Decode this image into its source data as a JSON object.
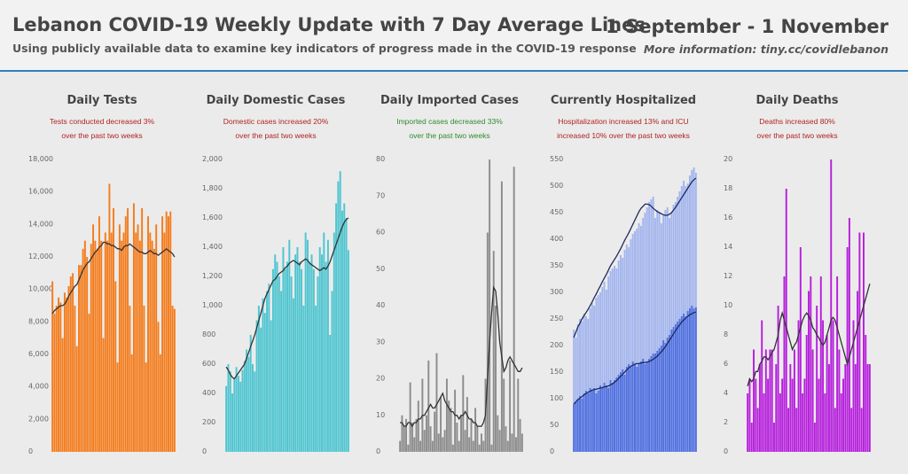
{
  "header": {
    "title": "Lebanon COVID-19 Weekly Update with 7 Day Average Lines",
    "subtitle": "Using publicly available data to examine key indicators of progress made in the COVID-19 response",
    "date_range": "1 September - 1 November",
    "more_info": "More information: tiny.cc/covidlebanon"
  },
  "chart_data": [
    {
      "type": "bar",
      "title": "Daily Tests",
      "annotation": [
        "Tests conducted decreased 3%",
        "over the past two weeks"
      ],
      "annotation_color": "#b22222",
      "ylim": [
        0,
        18000
      ],
      "yticks": [
        0,
        {
          "value": 2000,
          "label": "2,000"
        },
        {
          "value": 4000,
          "label": "4,000"
        },
        {
          "value": 6000,
          "label": "6,000"
        },
        {
          "value": 8000,
          "label": "8,000"
        },
        {
          "value": 10000,
          "label": "10,000"
        },
        {
          "value": 12000,
          "label": "12,000"
        },
        {
          "value": 14000,
          "label": "14,000"
        },
        {
          "value": 16000,
          "label": "16,000"
        },
        {
          "value": 18000,
          "label": "18,000"
        }
      ],
      "series": [
        {
          "color": "#f47c1c",
          "average_color": "#333333",
          "values": [
            10500,
            8500,
            9000,
            9500,
            9200,
            7000,
            9800,
            9500,
            10200,
            10800,
            11000,
            9000,
            6500,
            11500,
            11500,
            12500,
            13000,
            12000,
            8500,
            12800,
            14000,
            13000,
            12500,
            14500,
            13000,
            7000,
            13500,
            13000,
            16500,
            13500,
            15000,
            10500,
            5500,
            14000,
            13000,
            13500,
            14500,
            15000,
            9000,
            6000,
            15300,
            13500,
            14000,
            13000,
            15000,
            9000,
            5500,
            14500,
            13500,
            13000,
            12500,
            14000,
            8000,
            6000,
            14500,
            13500,
            14800,
            14500,
            14800,
            9000,
            8800
          ],
          "average": [
            8500,
            8700,
            8800,
            8900,
            9000,
            9000,
            9100,
            9300,
            9600,
            9800,
            10000,
            10200,
            10300,
            10600,
            10900,
            11200,
            11400,
            11600,
            11700,
            11900,
            12100,
            12300,
            12400,
            12600,
            12700,
            12900,
            12900,
            12800,
            12800,
            12700,
            12700,
            12600,
            12500,
            12500,
            12400,
            12600,
            12700,
            12700,
            12800,
            12700,
            12600,
            12500,
            12400,
            12300,
            12300,
            12200,
            12200,
            12300,
            12400,
            12300,
            12200,
            12200,
            12100,
            12200,
            12300,
            12400,
            12500,
            12400,
            12300,
            12200,
            12000
          ]
        }
      ]
    },
    {
      "type": "bar",
      "title": "Daily Domestic Cases",
      "annotation": [
        "Domestic cases increased 20%",
        "over the past two weeks"
      ],
      "annotation_color": "#b22222",
      "ylim": [
        0,
        2000
      ],
      "yticks": [
        0,
        200,
        400,
        600,
        800,
        {
          "value": 1000,
          "label": "1,000"
        },
        {
          "value": 1200,
          "label": "1,200"
        },
        {
          "value": 1400,
          "label": "1,400"
        },
        {
          "value": 1600,
          "label": "1,600"
        },
        {
          "value": 1800,
          "label": "1,800"
        },
        {
          "value": 2000,
          "label": "2,000"
        }
      ],
      "series": [
        {
          "color": "#4ec5d0",
          "average_color": "#333333",
          "values": [
            450,
            600,
            550,
            400,
            500,
            580,
            520,
            480,
            560,
            620,
            700,
            650,
            800,
            600,
            550,
            900,
            1000,
            850,
            1050,
            950,
            1100,
            1150,
            900,
            1250,
            1350,
            1300,
            1200,
            1100,
            1400,
            1250,
            1300,
            1450,
            1200,
            1050,
            1350,
            1400,
            1300,
            1250,
            1000,
            1500,
            1450,
            1300,
            1350,
            1250,
            1000,
            1200,
            1400,
            1350,
            1500,
            1300,
            1450,
            800,
            1100,
            1500,
            1700,
            1850,
            1920,
            1650,
            1700,
            1600,
            1380
          ],
          "average": [
            580,
            560,
            530,
            510,
            500,
            520,
            540,
            560,
            580,
            600,
            640,
            680,
            720,
            760,
            800,
            850,
            900,
            950,
            1000,
            1050,
            1080,
            1110,
            1140,
            1170,
            1180,
            1200,
            1220,
            1230,
            1240,
            1260,
            1270,
            1290,
            1300,
            1310,
            1300,
            1290,
            1280,
            1300,
            1310,
            1320,
            1310,
            1290,
            1280,
            1270,
            1260,
            1250,
            1240,
            1250,
            1260,
            1250,
            1270,
            1300,
            1340,
            1380,
            1420,
            1460,
            1500,
            1540,
            1570,
            1590,
            1600
          ]
        }
      ]
    },
    {
      "type": "bar",
      "title": "Daily Imported Cases",
      "annotation": [
        "Imported cases decreased 33%",
        "over the past two weeks"
      ],
      "annotation_color": "#2e8b2e",
      "ylim": [
        0,
        80
      ],
      "yticks": [
        0,
        10,
        20,
        30,
        40,
        50,
        60,
        70,
        80
      ],
      "series": [
        {
          "color": "#8c8c8c",
          "average_color": "#333333",
          "values": [
            3,
            10,
            7,
            9,
            2,
            19,
            8,
            4,
            9,
            14,
            3,
            20,
            6,
            10,
            25,
            7,
            3,
            11,
            27,
            5,
            15,
            4,
            6,
            20,
            14,
            12,
            2,
            17,
            8,
            3,
            10,
            21,
            6,
            15,
            4,
            9,
            3,
            12,
            7,
            2,
            5,
            3,
            20,
            60,
            80,
            2,
            55,
            40,
            10,
            6,
            74,
            20,
            7,
            3,
            25,
            5,
            78,
            4,
            20,
            9,
            5
          ],
          "average": [
            8,
            8,
            7,
            7,
            8,
            8,
            7,
            8,
            8,
            9,
            9,
            10,
            10,
            11,
            12,
            13,
            12,
            12,
            13,
            14,
            15,
            16,
            14,
            13,
            12,
            11,
            11,
            10,
            10,
            9,
            10,
            10,
            11,
            10,
            9,
            9,
            8,
            8,
            7,
            7,
            7,
            8,
            10,
            20,
            30,
            38,
            45,
            44,
            38,
            30,
            26,
            22,
            23,
            25,
            26,
            25,
            24,
            23,
            22,
            22,
            23
          ]
        }
      ]
    },
    {
      "type": "bar",
      "title": "Currently Hospitalized",
      "annotation": [
        "Hospitalization increased 13% and ICU",
        "increased 10% over the past two weeks"
      ],
      "annotation_color": "#b22222",
      "ylim": [
        0,
        550
      ],
      "yticks": [
        0,
        50,
        100,
        150,
        200,
        250,
        300,
        350,
        400,
        450,
        500,
        550
      ],
      "series": [
        {
          "color": "#a3b5ee",
          "average_color": "#1c2a5c",
          "values": [
            230,
            215,
            240,
            250,
            245,
            260,
            255,
            250,
            270,
            280,
            275,
            290,
            295,
            300,
            310,
            320,
            305,
            330,
            340,
            345,
            350,
            345,
            360,
            370,
            365,
            380,
            390,
            385,
            400,
            410,
            415,
            420,
            430,
            425,
            440,
            450,
            460,
            470,
            475,
            480,
            440,
            455,
            450,
            430,
            445,
            455,
            460,
            440,
            450,
            465,
            470,
            480,
            490,
            500,
            510,
            500,
            505,
            520,
            530,
            535,
            525
          ],
          "average": [
            215,
            225,
            235,
            242,
            250,
            256,
            262,
            268,
            275,
            282,
            290,
            297,
            305,
            312,
            320,
            327,
            334,
            342,
            350,
            356,
            362,
            368,
            375,
            382,
            390,
            398,
            405,
            412,
            420,
            428,
            436,
            444,
            452,
            458,
            462,
            466,
            466,
            465,
            462,
            458,
            455,
            452,
            450,
            448,
            446,
            445,
            445,
            447,
            450,
            455,
            460,
            466,
            472,
            478,
            484,
            490,
            496,
            502,
            508,
            512,
            515
          ]
        },
        {
          "color": "#5070e0",
          "average_color": "#1c2a5c",
          "values": [
            90,
            95,
            100,
            105,
            100,
            110,
            115,
            110,
            120,
            115,
            120,
            110,
            115,
            125,
            120,
            130,
            125,
            120,
            135,
            130,
            135,
            140,
            145,
            150,
            155,
            145,
            160,
            165,
            160,
            170,
            165,
            160,
            165,
            170,
            175,
            165,
            170,
            175,
            180,
            185,
            185,
            190,
            195,
            200,
            210,
            205,
            215,
            220,
            230,
            235,
            240,
            245,
            250,
            255,
            260,
            255,
            265,
            270,
            275,
            270,
            272
          ],
          "average": [
            90,
            94,
            98,
            101,
            104,
            107,
            110,
            112,
            114,
            116,
            117,
            118,
            119,
            120,
            121,
            122,
            123,
            124,
            126,
            128,
            131,
            134,
            138,
            142,
            146,
            150,
            154,
            158,
            161,
            163,
            165,
            166,
            166,
            167,
            168,
            168,
            169,
            170,
            172,
            174,
            177,
            180,
            184,
            188,
            193,
            198,
            204,
            210,
            216,
            222,
            228,
            234,
            239,
            244,
            248,
            252,
            255,
            258,
            260,
            262,
            263
          ]
        }
      ]
    },
    {
      "type": "bar",
      "title": "Daily Deaths",
      "annotation": [
        "Deaths increased 80%",
        "over the past two weeks"
      ],
      "annotation_color": "#b22222",
      "ylim": [
        0,
        20
      ],
      "yticks": [
        0,
        2,
        4,
        6,
        8,
        10,
        12,
        14,
        16,
        18,
        20
      ],
      "series": [
        {
          "color": "#b61fdc",
          "average_color": "#333333",
          "values": [
            4,
            5,
            2,
            7,
            5,
            3,
            6,
            9,
            4,
            7,
            5,
            7,
            7,
            2,
            6,
            10,
            4,
            5,
            12,
            18,
            3,
            6,
            5,
            7,
            3,
            9,
            14,
            4,
            5,
            8,
            11,
            12,
            7,
            2,
            10,
            5,
            12,
            9,
            4,
            8,
            6,
            20,
            9,
            3,
            12,
            7,
            4,
            5,
            6,
            14,
            16,
            3,
            9,
            6,
            11,
            15,
            3,
            15,
            8,
            6,
            6
          ],
          "average": [
            4.5,
            5,
            4.8,
            5,
            5.5,
            5.5,
            6,
            6.2,
            6.5,
            6.5,
            6.3,
            6.5,
            6.8,
            7,
            7.5,
            8,
            9,
            9.5,
            9,
            8.5,
            8,
            7.5,
            7,
            7.3,
            7.5,
            8,
            8.5,
            9,
            9.3,
            9.5,
            9.3,
            9,
            8.5,
            8.3,
            8,
            7.8,
            7.5,
            7.3,
            7.5,
            8,
            8.5,
            9,
            9.2,
            9,
            8.5,
            8,
            7.5,
            7,
            6.5,
            6,
            6.5,
            7,
            7.5,
            8,
            8.5,
            9,
            9.5,
            10,
            10.5,
            11,
            11.5
          ]
        }
      ]
    }
  ]
}
